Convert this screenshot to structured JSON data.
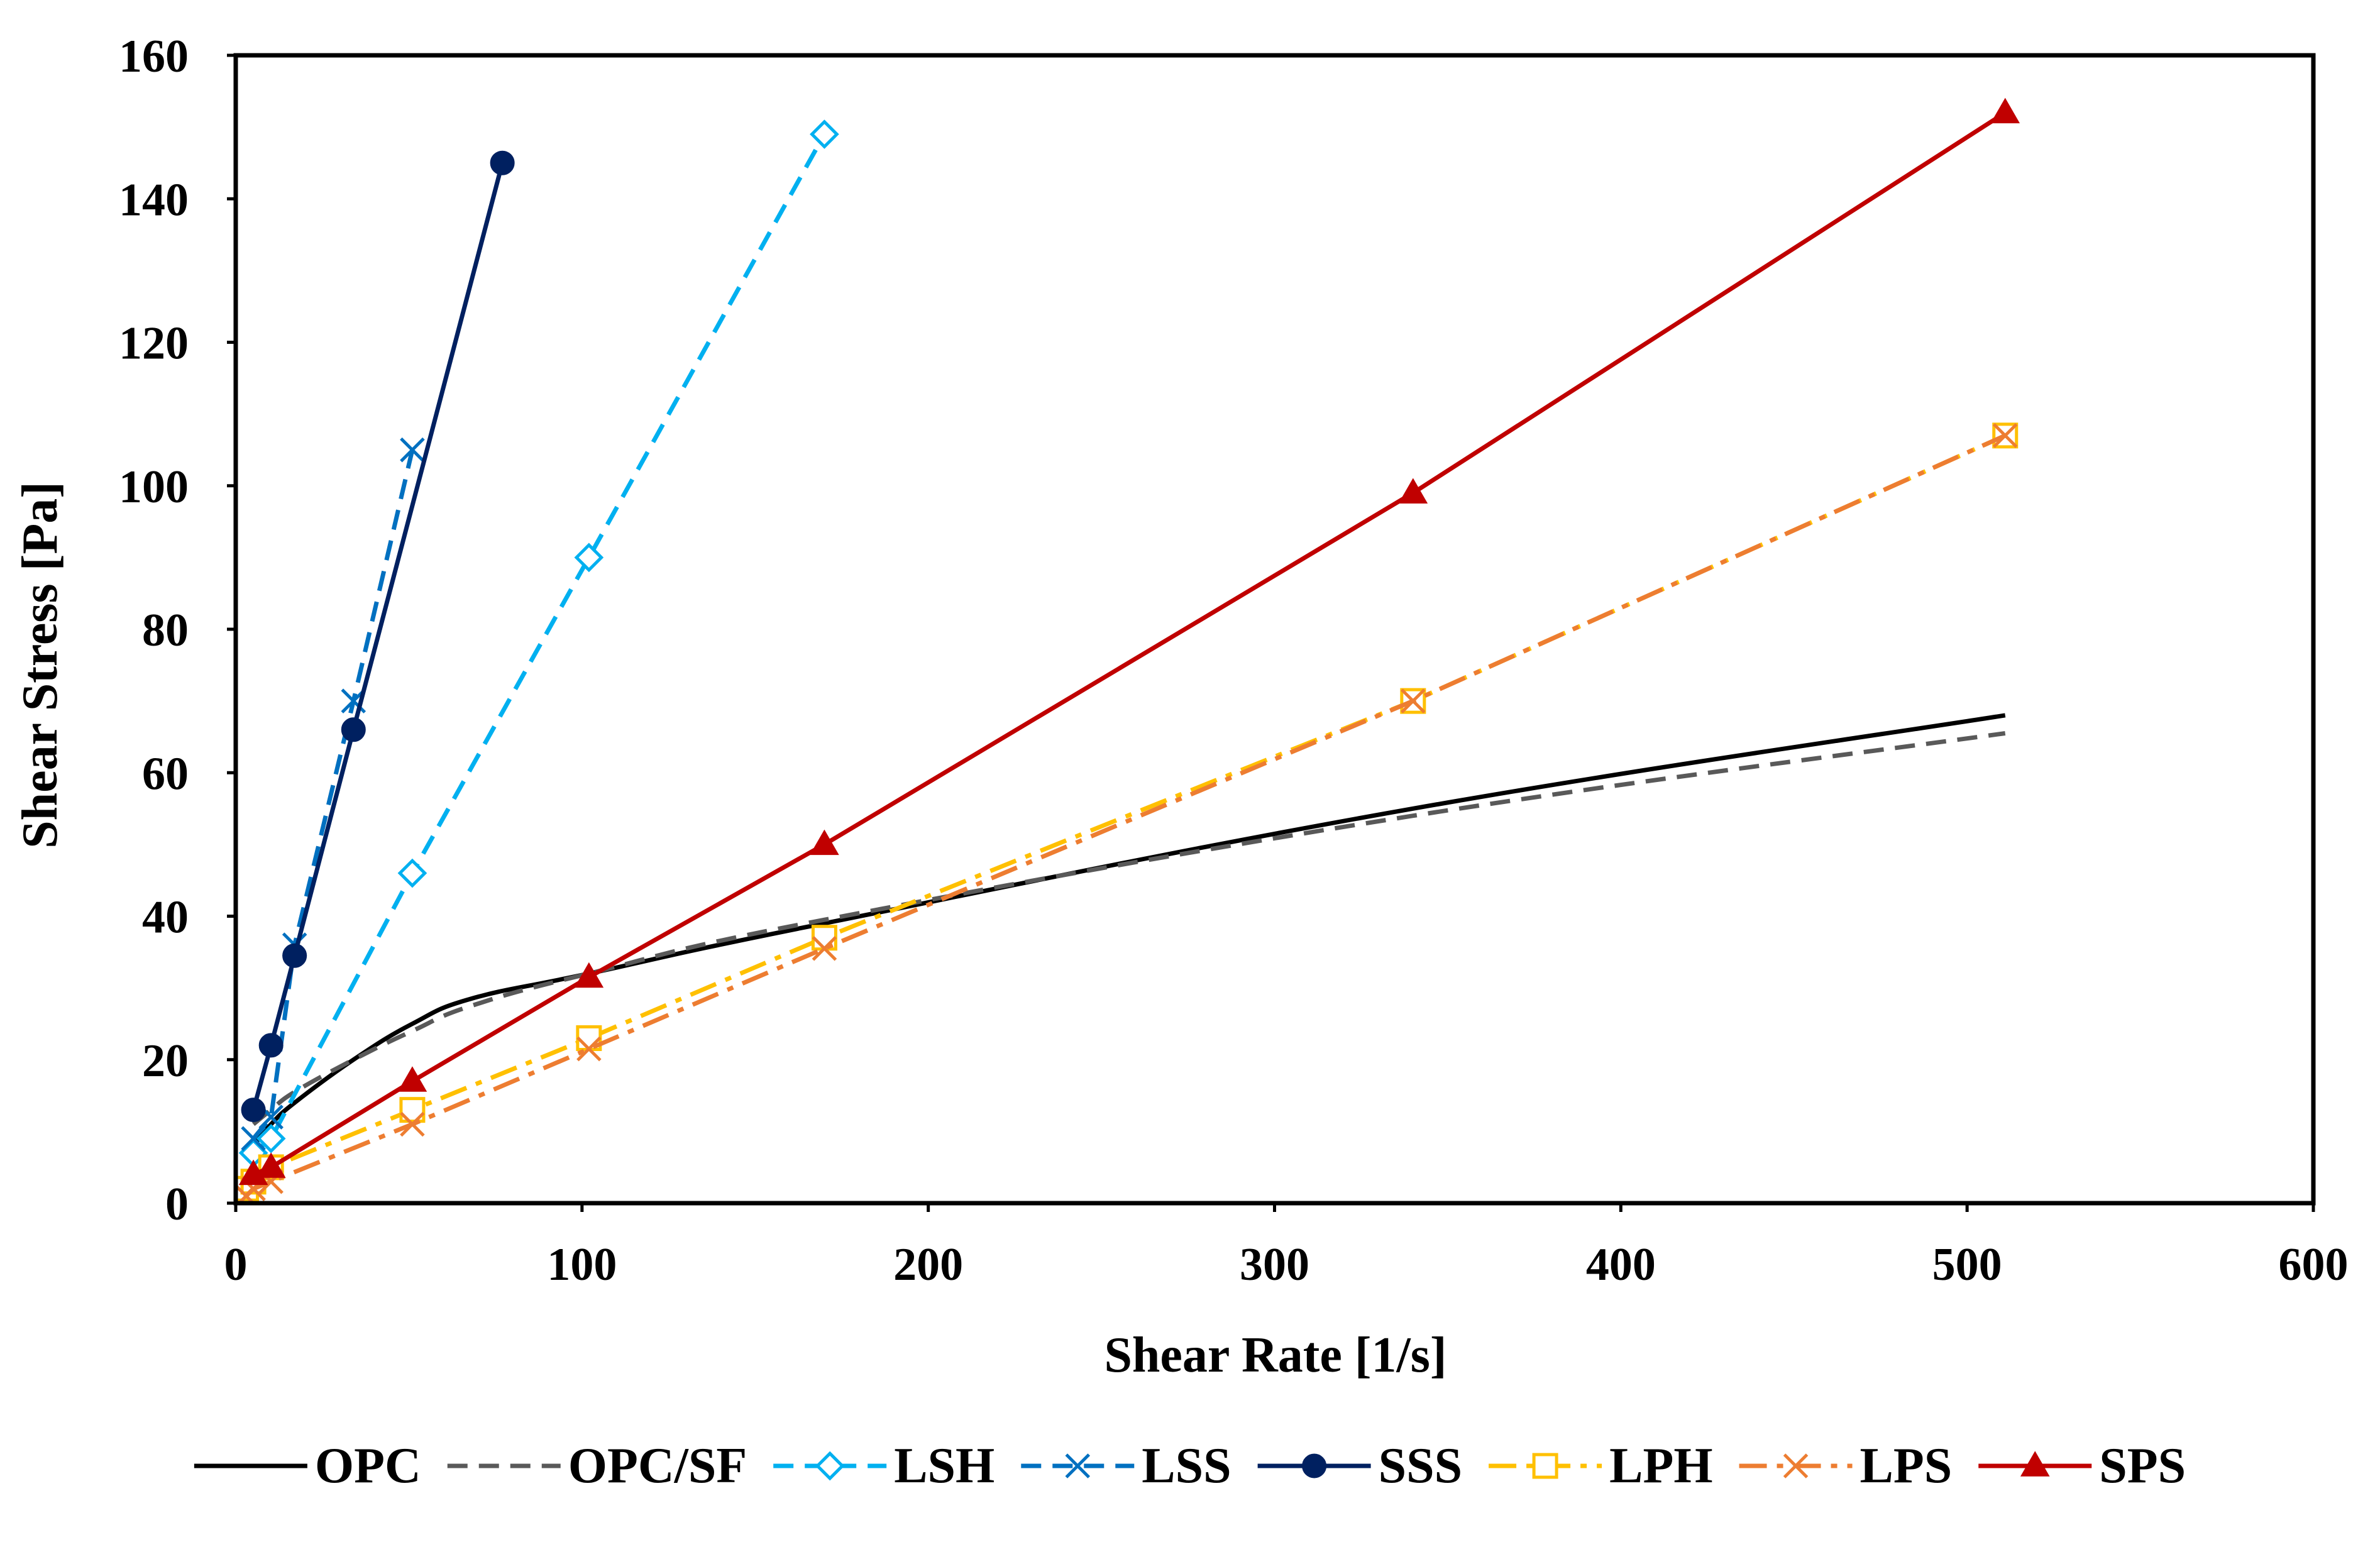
{
  "chart_data": {
    "type": "line",
    "title": "",
    "xlabel": "Shear Rate [1/s]",
    "ylabel": "Shear Stress [Pa]",
    "xlim": [
      0,
      600
    ],
    "ylim": [
      0,
      160
    ],
    "xticks": [
      0,
      100,
      200,
      300,
      400,
      500,
      600
    ],
    "yticks": [
      0,
      20,
      40,
      60,
      80,
      100,
      120,
      140,
      160
    ],
    "grid": false,
    "legend_position": "bottom",
    "series": [
      {
        "name": "OPC",
        "color": "#000000",
        "dash": "solid",
        "marker": "none",
        "smooth": true,
        "x": [
          5.1,
          10.2,
          17,
          34,
          51,
          68,
          102,
          170,
          340,
          511
        ],
        "y": [
          8,
          11,
          14,
          20,
          25,
          28.5,
          32,
          39,
          55,
          68
        ]
      },
      {
        "name": "OPC/SF",
        "color": "#595959",
        "dash": "dash",
        "marker": "none",
        "smooth": true,
        "x": [
          5.1,
          10.2,
          17,
          34,
          51,
          68,
          102,
          170,
          340,
          511
        ],
        "y": [
          11,
          13,
          15.5,
          20,
          24,
          27.5,
          32,
          39.5,
          54,
          65.5
        ]
      },
      {
        "name": "LSH",
        "color": "#00B0F0",
        "dash": "dash",
        "marker": "diamond-open",
        "smooth": false,
        "x": [
          5.1,
          10.2,
          51,
          102,
          170
        ],
        "y": [
          7,
          9,
          46,
          90,
          149
        ]
      },
      {
        "name": "LSS",
        "color": "#0070C0",
        "dash": "dash",
        "marker": "x",
        "smooth": false,
        "x": [
          5.1,
          10.2,
          17,
          34,
          51
        ],
        "y": [
          9,
          12,
          36,
          70,
          105
        ]
      },
      {
        "name": "SSS",
        "color": "#002060",
        "dash": "solid",
        "marker": "circle",
        "smooth": false,
        "x": [
          5.1,
          10.2,
          17,
          34,
          77
        ],
        "y": [
          13,
          22,
          34.5,
          66,
          145
        ]
      },
      {
        "name": "LPH",
        "color": "#FFC000",
        "dash": "dashdot",
        "marker": "square-open",
        "smooth": false,
        "x": [
          3,
          5.1,
          10.2,
          51,
          102,
          170,
          340,
          511
        ],
        "y": [
          2,
          3,
          5,
          13,
          23,
          37,
          70,
          107
        ]
      },
      {
        "name": "LPS",
        "color": "#ED7D31",
        "dash": "dashdot",
        "marker": "x",
        "smooth": false,
        "x": [
          3,
          5.1,
          10.2,
          51,
          102,
          170,
          340,
          511
        ],
        "y": [
          1,
          2,
          3,
          11,
          21.5,
          35.5,
          70,
          107
        ]
      },
      {
        "name": "SPS",
        "color": "#C00000",
        "dash": "solid",
        "marker": "triangle",
        "smooth": false,
        "x": [
          5.1,
          10.2,
          51,
          102,
          170,
          340,
          511
        ],
        "y": [
          4,
          5,
          17,
          31.5,
          50,
          99,
          152
        ]
      }
    ]
  }
}
